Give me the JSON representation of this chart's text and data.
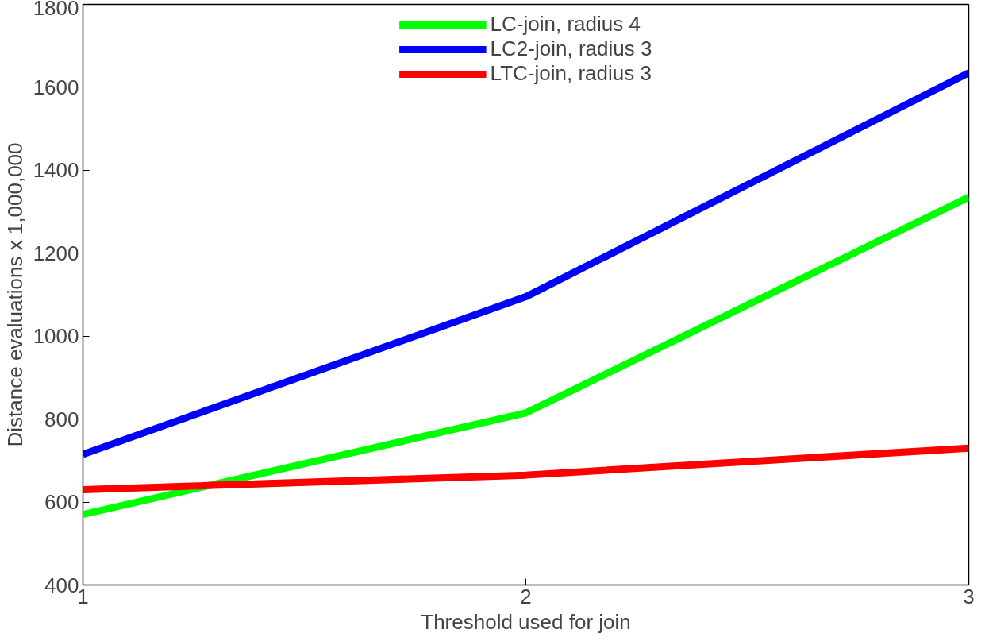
{
  "chart_data": {
    "type": "line",
    "xlabel": "Threshold used for join",
    "ylabel": "Distance evaluations x 1,000,000",
    "x": [
      1,
      2,
      3
    ],
    "xlim": [
      1,
      3
    ],
    "xticks": [
      1,
      2,
      3
    ],
    "ylim": [
      400,
      1800
    ],
    "yticks": [
      400,
      600,
      800,
      1000,
      1200,
      1400,
      1600,
      1800
    ],
    "grid": false,
    "legend": "top",
    "line_style": "solid",
    "series": [
      {
        "name": "LC-join, radius 4",
        "color": "#00ff00",
        "values": [
          570,
          815,
          1335
        ]
      },
      {
        "name": "LC2-join, radius 3",
        "color": "#0000ff",
        "values": [
          715,
          1095,
          1635
        ]
      },
      {
        "name": "LTC-join, radius 3",
        "color": "#ff0000",
        "values": [
          630,
          665,
          730
        ]
      }
    ]
  }
}
